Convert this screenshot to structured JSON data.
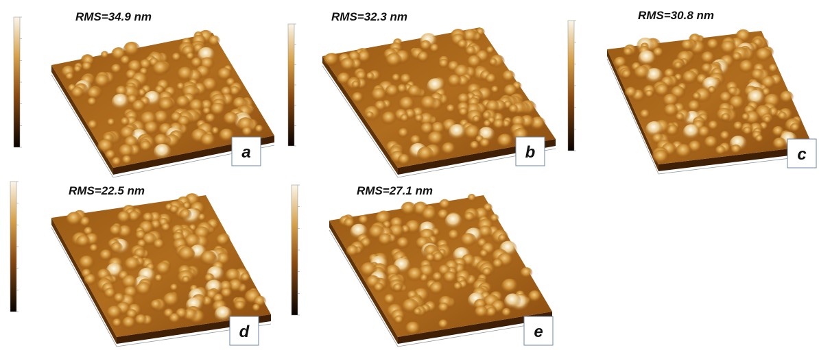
{
  "panels": [
    {
      "rms": "RMS=34.9 nm",
      "label": "a"
    },
    {
      "rms": "RMS=32.3 nm",
      "label": "b"
    },
    {
      "rms": "RMS=30.8 nm",
      "label": "c"
    },
    {
      "rms": "RMS=22.5 nm",
      "label": "d"
    },
    {
      "rms": "RMS=27.1 nm",
      "label": "e"
    }
  ]
}
